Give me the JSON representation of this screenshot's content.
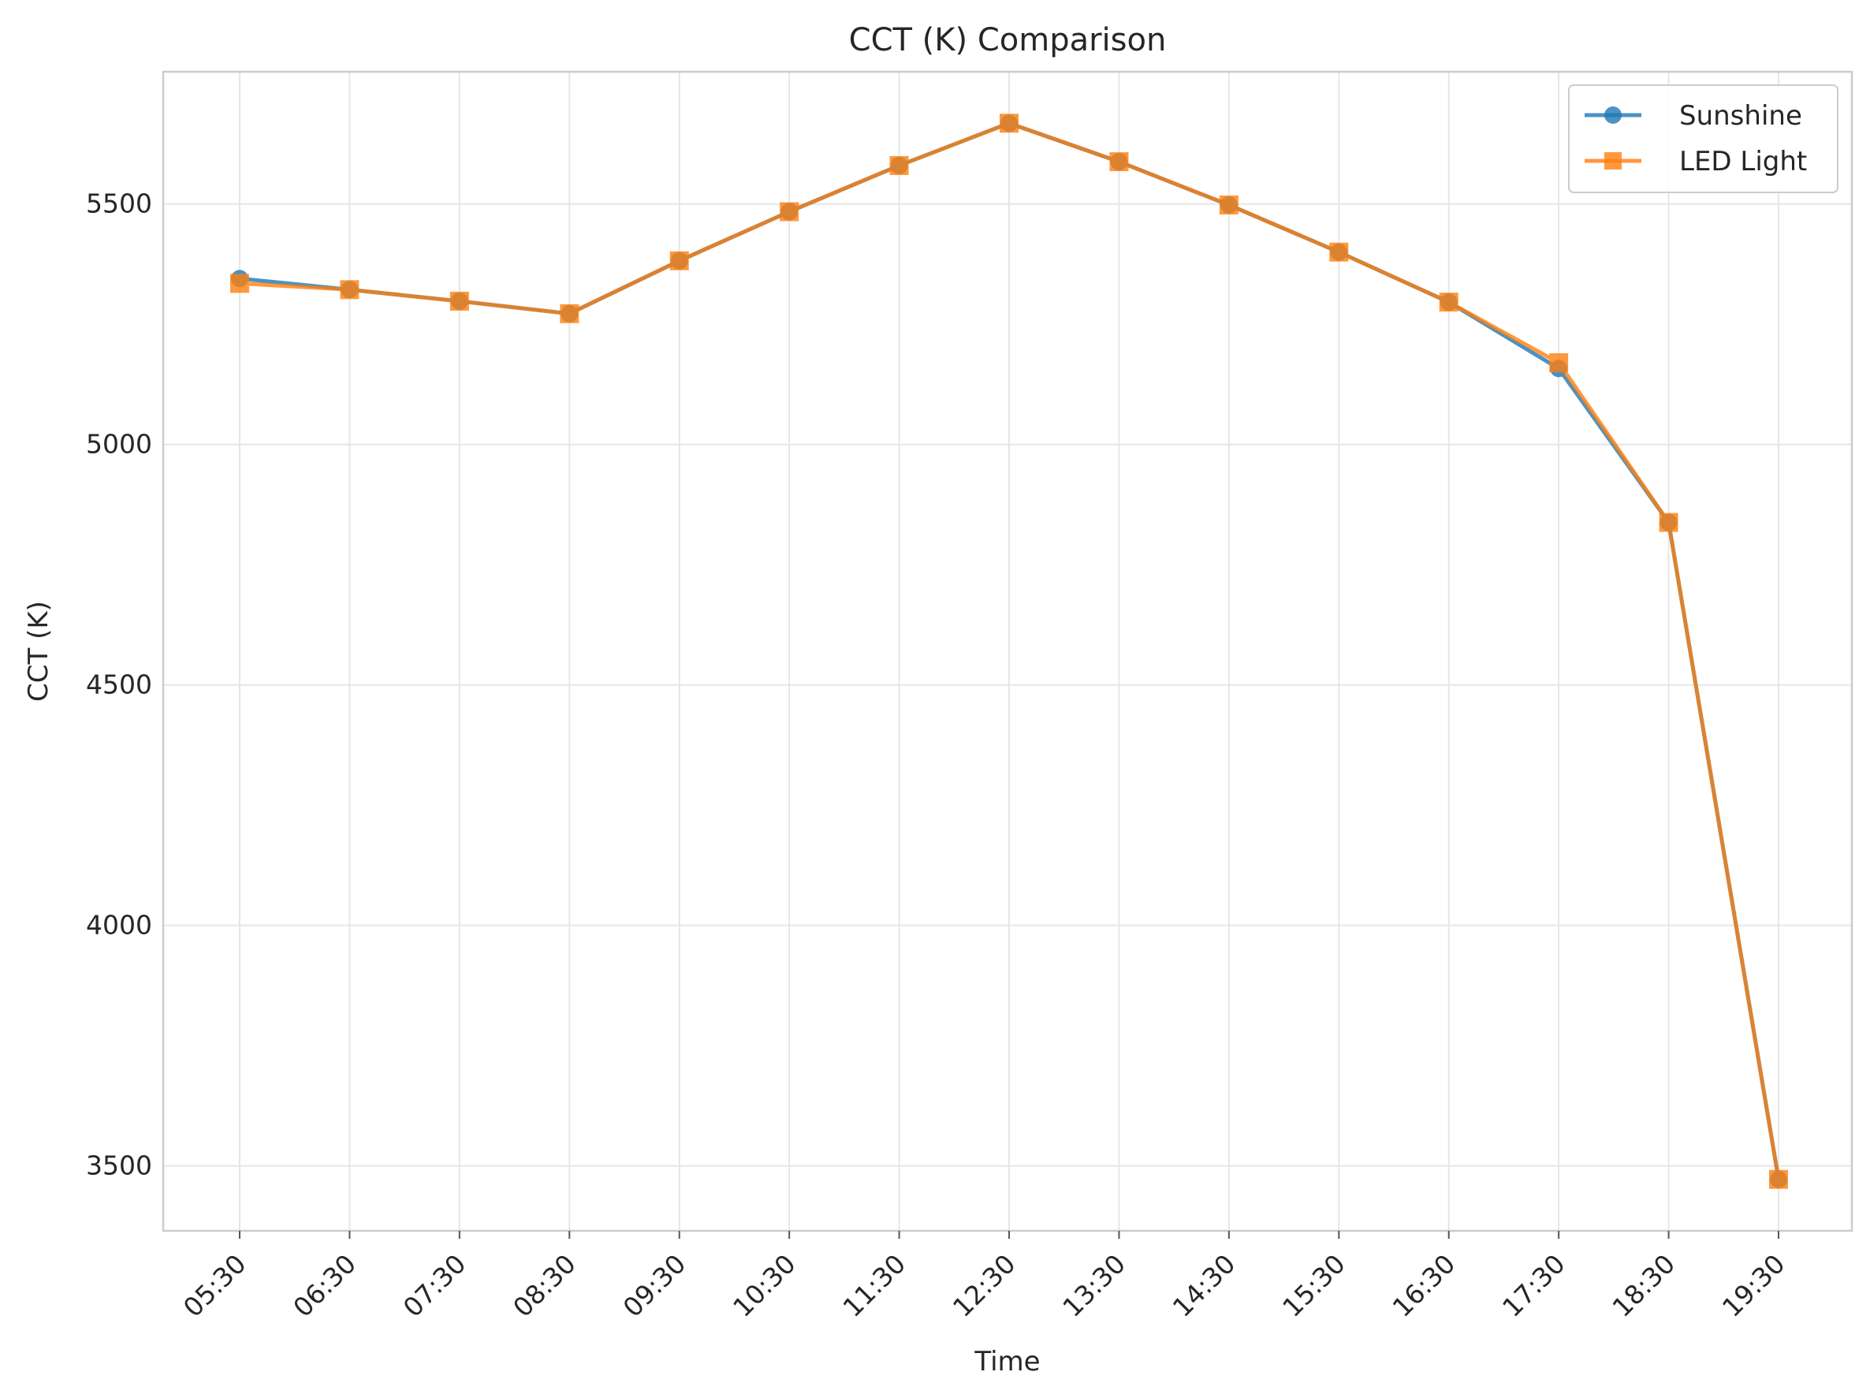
{
  "chart_data": {
    "type": "line",
    "title": "CCT (K) Comparison",
    "xlabel": "Time",
    "ylabel": "CCT (K)",
    "categories": [
      "05:30",
      "06:30",
      "07:30",
      "08:30",
      "09:30",
      "10:30",
      "11:30",
      "12:30",
      "13:30",
      "14:30",
      "15:30",
      "16:30",
      "17:30",
      "18:30",
      "19:30"
    ],
    "series": [
      {
        "name": "Sunshine",
        "color": "#1f77b4",
        "marker": "circle",
        "values": [
          5345,
          5322,
          5298,
          5272,
          5382,
          5484,
          5580,
          5668,
          5588,
          5498,
          5400,
          5296,
          5158,
          4838,
          3472
        ]
      },
      {
        "name": "LED Light",
        "color": "#ff7f0e",
        "marker": "square",
        "values": [
          5335,
          5322,
          5298,
          5272,
          5382,
          5484,
          5580,
          5668,
          5588,
          5498,
          5400,
          5296,
          5170,
          4838,
          3472
        ]
      }
    ],
    "yticks": [
      3500,
      4000,
      4500,
      5000,
      5500
    ],
    "ylim": [
      3365,
      5775
    ],
    "grid": true,
    "legend_position": "top-right"
  }
}
